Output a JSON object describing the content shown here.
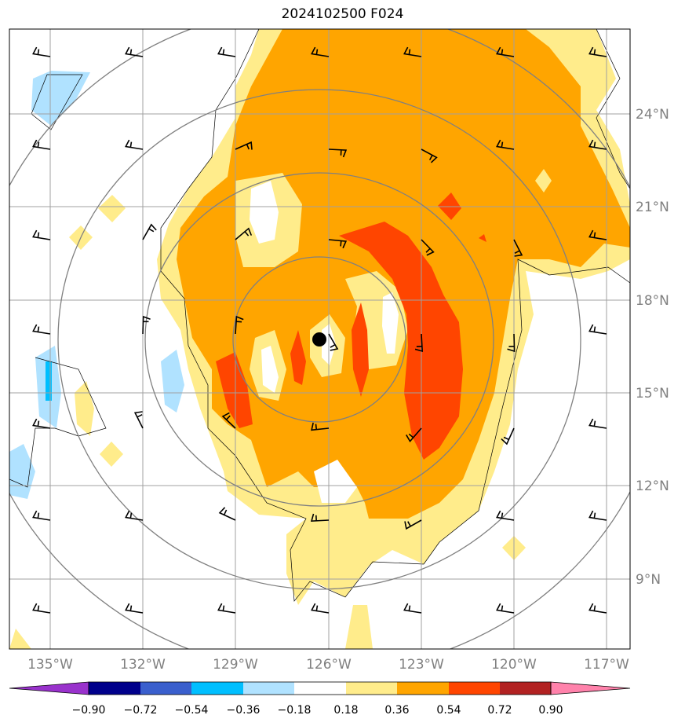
{
  "title": "2024102500 F024",
  "map": {
    "lon_ticks": [
      "135°W",
      "132°W",
      "129°W",
      "126°W",
      "123°W",
      "120°W",
      "117°W"
    ],
    "lat_ticks": [
      "24°N",
      "21°N",
      "18°N",
      "15°N",
      "12°N",
      "9°N"
    ],
    "lon_range": [
      -136.3,
      -116.3
    ],
    "lat_range": [
      7.3,
      27.3
    ],
    "storm_center": {
      "lon": -126.3,
      "lat": 16.7
    },
    "range_rings_deg": [
      2.7,
      5.4,
      8.1,
      10.8
    ],
    "grid": true
  },
  "colorbar": {
    "labels": [
      "−0.90",
      "−0.72",
      "−0.54",
      "−0.36",
      "−0.18",
      "0.18",
      "0.36",
      "0.54",
      "0.72",
      "0.90"
    ],
    "colors": [
      "#9932CC",
      "#00008B",
      "#3A5FCD",
      "#00BFFF",
      "#B0E2FF",
      "#FFFFFF",
      "#FFEC8B",
      "#FFA500",
      "#FF4500",
      "#B22222",
      "#FF82AB"
    ]
  }
}
